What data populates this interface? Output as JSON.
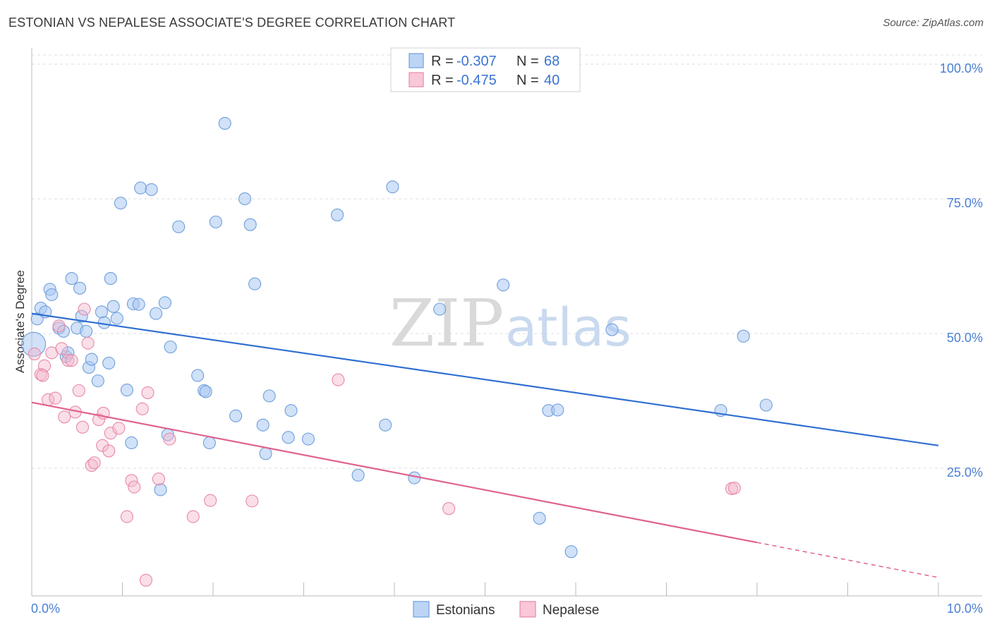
{
  "title": "ESTONIAN VS NEPALESE ASSOCIATE'S DEGREE CORRELATION CHART",
  "source": "Source: ZipAtlas.com",
  "watermark": {
    "part1": "ZIP",
    "part2": "atlas"
  },
  "colors": {
    "estonians": "#a9c8f2",
    "estonians_stroke": "#6f9fdc",
    "estonians_line": "#2f6fd1",
    "nepalese": "#f5b8cc",
    "nepalese_stroke": "#e889a8",
    "nepalese_line": "#e0628f",
    "axis_text": "#4a7fd4",
    "grid": "#dddddd"
  },
  "legend": {
    "rows": [
      {
        "r_label": "R =",
        "r_value": "-0.307",
        "n_label": "N =",
        "n_value": "68"
      },
      {
        "r_label": "R =",
        "r_value": "-0.475",
        "n_label": "N =",
        "n_value": "40"
      }
    ]
  },
  "bottom_legend": [
    "Estonians",
    "Nepalese"
  ],
  "chart_data": {
    "type": "scatter",
    "title": "ESTONIAN VS NEPALESE ASSOCIATE'S DEGREE CORRELATION CHART",
    "xlabel": "",
    "ylabel": "Associate's Degree",
    "xlim": [
      0,
      10
    ],
    "ylim": [
      0,
      105
    ],
    "x_tick_labels": [
      "0.0%",
      "10.0%"
    ],
    "y_tick_labels": [
      "100.0%",
      "75.0%",
      "50.0%",
      "25.0%"
    ],
    "y_ticks": [
      100,
      75,
      50,
      25
    ],
    "grid": true,
    "legend_position": "top-center",
    "series": [
      {
        "name": "Estonians",
        "r": -0.307,
        "n": 68,
        "trend": {
          "x0": 0,
          "y0": 54.5,
          "x1": 10,
          "y1": 30.0
        },
        "points": [
          [
            0.06,
            53.5
          ],
          [
            0.1,
            55.5
          ],
          [
            0.15,
            54.8
          ],
          [
            0.2,
            59
          ],
          [
            0.22,
            58
          ],
          [
            0.3,
            51.8
          ],
          [
            0.35,
            51.2
          ],
          [
            0.38,
            46.5
          ],
          [
            0.4,
            47.2
          ],
          [
            0.44,
            61
          ],
          [
            0.5,
            51.8
          ],
          [
            0.53,
            59.2
          ],
          [
            0.55,
            54
          ],
          [
            0.6,
            51.2
          ],
          [
            0.63,
            44.5
          ],
          [
            0.66,
            46
          ],
          [
            0.73,
            42
          ],
          [
            0.77,
            54.8
          ],
          [
            0.8,
            52.8
          ],
          [
            0.85,
            45.3
          ],
          [
            0.87,
            61
          ],
          [
            0.9,
            55.8
          ],
          [
            0.94,
            53.6
          ],
          [
            0.98,
            75
          ],
          [
            1.05,
            40.3
          ],
          [
            1.1,
            30.5
          ],
          [
            1.12,
            56.3
          ],
          [
            1.18,
            56.2
          ],
          [
            1.2,
            77.8
          ],
          [
            1.32,
            77.5
          ],
          [
            1.37,
            54.5
          ],
          [
            1.42,
            21.8
          ],
          [
            1.47,
            56.5
          ],
          [
            1.5,
            32
          ],
          [
            1.53,
            48.3
          ],
          [
            1.62,
            70.6
          ],
          [
            1.83,
            43
          ],
          [
            1.9,
            40.2
          ],
          [
            1.92,
            40
          ],
          [
            1.96,
            30.5
          ],
          [
            2.03,
            71.5
          ],
          [
            2.13,
            89.8
          ],
          [
            2.25,
            35.5
          ],
          [
            2.35,
            75.8
          ],
          [
            2.41,
            71
          ],
          [
            2.46,
            60
          ],
          [
            2.55,
            33.8
          ],
          [
            2.58,
            28.5
          ],
          [
            2.62,
            39.2
          ],
          [
            2.83,
            31.5
          ],
          [
            2.86,
            36.5
          ],
          [
            3.05,
            31.2
          ],
          [
            3.37,
            72.8
          ],
          [
            3.6,
            24.5
          ],
          [
            3.9,
            33.8
          ],
          [
            3.98,
            78
          ],
          [
            4.22,
            24
          ],
          [
            4.5,
            55.3
          ],
          [
            5.2,
            59.8
          ],
          [
            5.6,
            16.5
          ],
          [
            5.7,
            36.5
          ],
          [
            5.8,
            36.6
          ],
          [
            5.95,
            10.3
          ],
          [
            6.4,
            51.5
          ],
          [
            7.6,
            36.5
          ],
          [
            7.85,
            50.3
          ],
          [
            8.1,
            37.5
          ],
          [
            0.02,
            48.8
          ]
        ]
      },
      {
        "name": "Nepalese",
        "r": -0.475,
        "n": 40,
        "trend": {
          "x0": 0,
          "y0": 38.0,
          "x1": 8.0,
          "y1": 12.0,
          "x_dash_end": 10,
          "y_dash_end": 5.5
        },
        "points": [
          [
            0.03,
            47
          ],
          [
            0.1,
            43.2
          ],
          [
            0.14,
            44.8
          ],
          [
            0.18,
            38.5
          ],
          [
            0.22,
            47.2
          ],
          [
            0.26,
            38.8
          ],
          [
            0.3,
            52.2
          ],
          [
            0.33,
            48
          ],
          [
            0.36,
            35.3
          ],
          [
            0.4,
            45.8
          ],
          [
            0.44,
            45.8
          ],
          [
            0.48,
            36.2
          ],
          [
            0.52,
            40.2
          ],
          [
            0.56,
            33.4
          ],
          [
            0.58,
            55.3
          ],
          [
            0.62,
            49
          ],
          [
            0.66,
            26.3
          ],
          [
            0.69,
            26.8
          ],
          [
            0.74,
            34.8
          ],
          [
            0.78,
            30
          ],
          [
            0.79,
            36
          ],
          [
            0.85,
            29
          ],
          [
            0.87,
            32.3
          ],
          [
            0.96,
            33.2
          ],
          [
            1.05,
            16.8
          ],
          [
            1.1,
            23.5
          ],
          [
            1.13,
            22.3
          ],
          [
            1.22,
            36.8
          ],
          [
            1.26,
            5.0
          ],
          [
            1.28,
            39.8
          ],
          [
            1.4,
            23.8
          ],
          [
            1.52,
            31.2
          ],
          [
            1.78,
            16.8
          ],
          [
            1.97,
            19.8
          ],
          [
            2.43,
            19.7
          ],
          [
            3.38,
            42.2
          ],
          [
            4.6,
            18.3
          ],
          [
            7.72,
            22
          ],
          [
            7.75,
            22.1
          ],
          [
            0.12,
            43
          ]
        ]
      }
    ]
  }
}
